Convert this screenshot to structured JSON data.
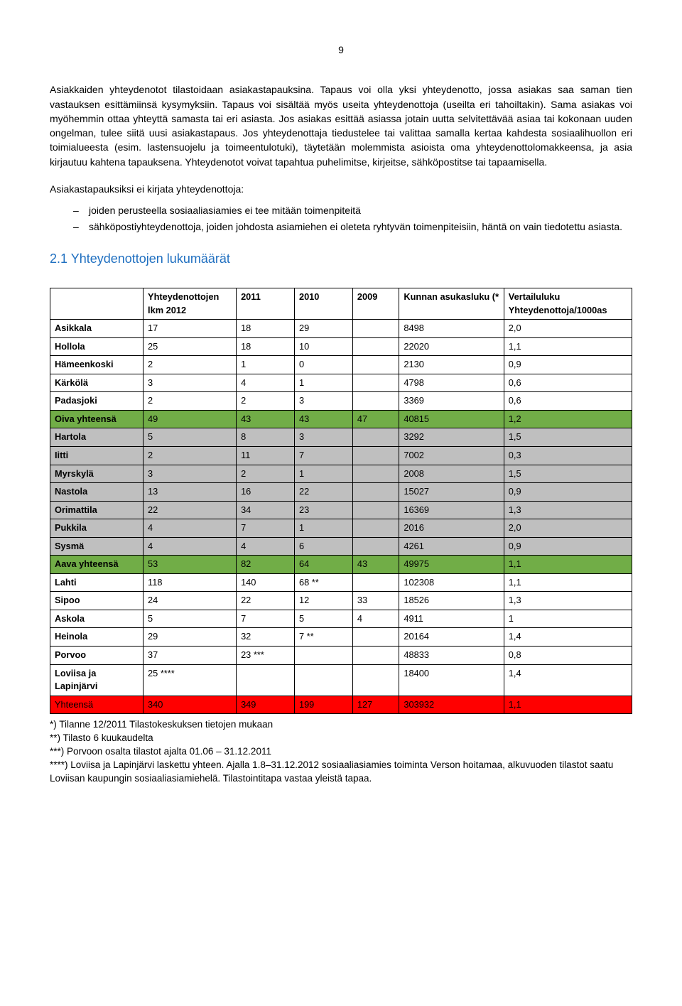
{
  "pageNumber": "9",
  "paragraphs": {
    "p1": "Asiakkaiden yhteydenotot tilastoidaan asiakastapauksina. Tapaus voi olla yksi yhteydenotto, jossa asiakas saa saman tien vastauksen esittämiinsä kysymyksiin. Tapaus voi sisältää myös useita yhteydenottoja (useilta eri tahoiltakin). Sama asiakas voi myöhemmin ottaa yhteyttä samasta tai eri asiasta. Jos asiakas esittää asiassa jotain uutta selvitettävää asiaa tai kokonaan uuden ongelman, tulee siitä uusi asiakastapaus. Jos yhteydenottaja tiedustelee tai valittaa samalla kertaa kahdesta sosiaalihuollon eri toimialueesta (esim. lastensuojelu ja toimeentulotuki), täytetään molemmista asioista oma yhteydenottolomakkeensa, ja asia kirjautuu kahtena tapauksena. Yhteydenotot voivat tapahtua puhelimitse, kirjeitse, sähköpostitse tai tapaamisella.",
    "p2": "Asiakastapauksiksi ei kirjata yhteydenottoja:",
    "li1": "joiden perusteella sosiaaliasiamies ei tee mitään toimenpiteitä",
    "li2": "sähköpostiyhteydenottoja, joiden johdosta asiamiehen ei oleteta ryhtyvän toimenpiteisiin, häntä on vain tiedotettu asiasta."
  },
  "sectionHeading": "2.1 Yhteydenottojen lukumäärät",
  "table": {
    "headers": {
      "col1": "",
      "col2": "Yhteydenottojen lkm 2012",
      "col3": "2011",
      "col4": "2010",
      "col5": "2009",
      "col6": "Kunnan asukasluku (*",
      "col7": "Vertailuluku Yhteydenottoja/1000as"
    },
    "colWidths": [
      "16%",
      "16%",
      "10%",
      "10%",
      "8%",
      "18%",
      "22%"
    ],
    "rows": [
      {
        "bg": "#ffffff",
        "cells": [
          "Asikkala",
          "17",
          "18",
          "29",
          "",
          "8498",
          "2,0"
        ],
        "bold": true
      },
      {
        "bg": "#ffffff",
        "cells": [
          "Hollola",
          "25",
          "18",
          "10",
          "",
          "22020",
          "1,1"
        ],
        "bold": true
      },
      {
        "bg": "#ffffff",
        "cells": [
          "Hämeenkoski",
          "2",
          "1",
          "0",
          "",
          "2130",
          "0,9"
        ],
        "bold": true
      },
      {
        "bg": "#ffffff",
        "cells": [
          "Kärkölä",
          "3",
          "4",
          "1",
          "",
          "4798",
          "0,6"
        ],
        "bold": true
      },
      {
        "bg": "#ffffff",
        "cells": [
          "Padasjoki",
          "2",
          "2",
          "3",
          "",
          "3369",
          "0,6"
        ],
        "bold": true
      },
      {
        "bg": "#71ad47",
        "cells": [
          "Oiva yhteensä",
          "49",
          "43",
          "43",
          "47",
          "40815",
          "1,2"
        ],
        "bold": true
      },
      {
        "bg": "#bfbfbf",
        "cells": [
          "Hartola",
          "5",
          "8",
          "3",
          "",
          "3292",
          "1,5"
        ],
        "bold": true
      },
      {
        "bg": "#bfbfbf",
        "cells": [
          "Iitti",
          "2",
          "11",
          "7",
          "",
          "7002",
          "0,3"
        ],
        "bold": true
      },
      {
        "bg": "#bfbfbf",
        "cells": [
          "Myrskylä",
          "3",
          "2",
          "1",
          "",
          "2008",
          "1,5"
        ],
        "bold": true
      },
      {
        "bg": "#bfbfbf",
        "cells": [
          "Nastola",
          "13",
          "16",
          "22",
          "",
          "15027",
          "0,9"
        ],
        "bold": true
      },
      {
        "bg": "#bfbfbf",
        "cells": [
          "Orimattila",
          "22",
          "34",
          "23",
          "",
          "16369",
          "1,3"
        ],
        "bold": true
      },
      {
        "bg": "#bfbfbf",
        "cells": [
          "Pukkila",
          "4",
          "7",
          "1",
          "",
          "2016",
          "2,0"
        ],
        "bold": true
      },
      {
        "bg": "#bfbfbf",
        "cells": [
          "Sysmä",
          "4",
          "4",
          "6",
          "",
          "4261",
          "0,9"
        ],
        "bold": true
      },
      {
        "bg": "#71ad47",
        "cells": [
          "Aava yhteensä",
          "53",
          "82",
          "64",
          "43",
          "49975",
          "1,1"
        ],
        "bold": true
      },
      {
        "bg": "#ffffff",
        "cells": [
          "Lahti",
          "118",
          "140",
          "68 **",
          "",
          "102308",
          "1,1"
        ],
        "bold": true
      },
      {
        "bg": "#ffffff",
        "cells": [
          "Sipoo",
          "24",
          "22",
          "12",
          "33",
          "18526",
          "1,3"
        ],
        "bold": true
      },
      {
        "bg": "#ffffff",
        "cells": [
          "Askola",
          "5",
          "7",
          "5",
          "4",
          "4911",
          "1"
        ],
        "bold": true
      },
      {
        "bg": "#ffffff",
        "cells": [
          "Heinola",
          "29",
          "32",
          "7 **",
          "",
          "20164",
          "1,4"
        ],
        "bold": true
      },
      {
        "bg": "#ffffff",
        "cells": [
          "Porvoo",
          "37",
          "23 ***",
          "",
          "",
          "48833",
          "0,8"
        ],
        "bold": true
      },
      {
        "bg": "#ffffff",
        "cells": [
          "Loviisa ja Lapinjärvi",
          "25 ****",
          "",
          "",
          "",
          "18400",
          "1,4"
        ],
        "bold": true
      },
      {
        "bg": "#ff0000",
        "cells": [
          "Yhteensä",
          "340",
          "349",
          "199",
          "127",
          "303932",
          "1,1"
        ],
        "bold": false
      }
    ]
  },
  "footnotes": {
    "f1": "*) Tilanne 12/2011 Tilastokeskuksen tietojen mukaan",
    "f2": "**) Tilasto 6 kuukaudelta",
    "f3": "***) Porvoon osalta tilastot ajalta 01.06 – 31.12.2011",
    "f4": "****) Loviisa ja Lapinjärvi laskettu yhteen. Ajalla 1.8–31.12.2012 sosiaaliasiamies toiminta Verson hoitamaa, alkuvuoden tilastot saatu Loviisan kaupungin sosiaaliasiamiehelä. Tilastointitapa vastaa yleistä tapaa."
  }
}
